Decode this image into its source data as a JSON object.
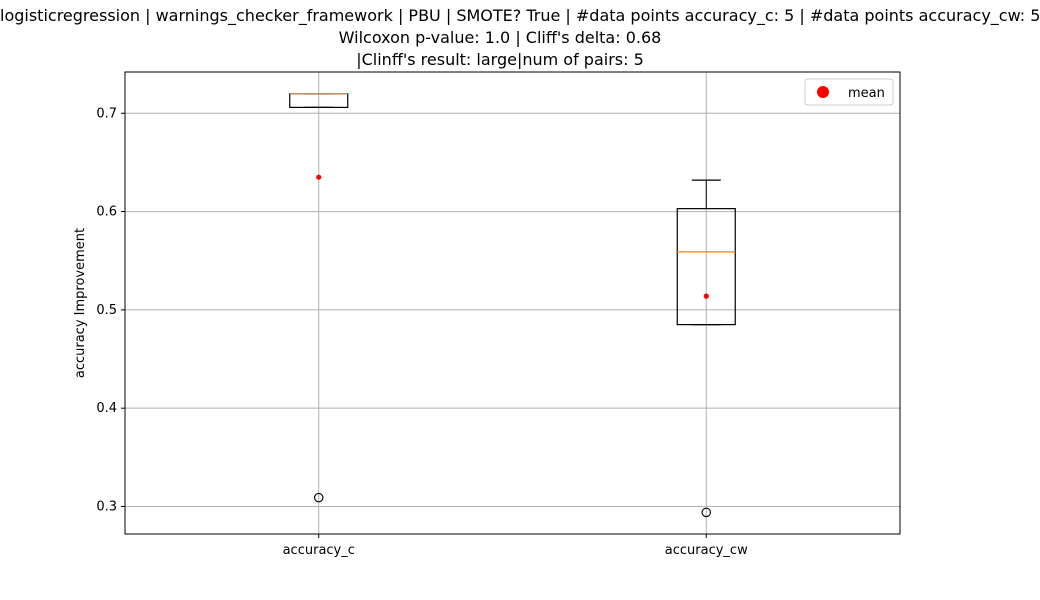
{
  "chart_data": {
    "type": "box",
    "title": [
      "logisticregression | warnings_checker_framework | PBU | SMOTE? True | #data points accuracy_c: 5 | #data points accuracy_cw: 5",
      "Wilcoxon p-value: 1.0 | Cliff's delta: 0.68",
      "|Clinff's result: large|num of pairs: 5"
    ],
    "xlabel": "",
    "ylabel": "accuracy Improvement",
    "ylim": [
      0.272,
      0.742
    ],
    "yticks": [
      0.3,
      0.4,
      0.5,
      0.6,
      0.7
    ],
    "ytick_labels": [
      "0.3",
      "0.4",
      "0.5",
      "0.6",
      "0.7"
    ],
    "grid": true,
    "legend": {
      "placement": "top-right",
      "entries": [
        "mean"
      ]
    },
    "categories": [
      "accuracy_c",
      "accuracy_cw"
    ],
    "boxes": [
      {
        "name": "accuracy_c",
        "whisker_low": 0.706,
        "q1": 0.706,
        "median": 0.72,
        "q3": 0.72,
        "whisker_high": 0.72,
        "mean": 0.635,
        "outliers": [
          0.309
        ]
      },
      {
        "name": "accuracy_cw",
        "whisker_low": 0.485,
        "q1": 0.485,
        "median": 0.559,
        "q3": 0.603,
        "whisker_high": 0.632,
        "mean": 0.514,
        "outliers": [
          0.294
        ]
      }
    ],
    "colors": {
      "box": "#000000",
      "median": "#ff7f0e",
      "mean": "#ff0000",
      "grid": "#b0b0b0"
    }
  }
}
